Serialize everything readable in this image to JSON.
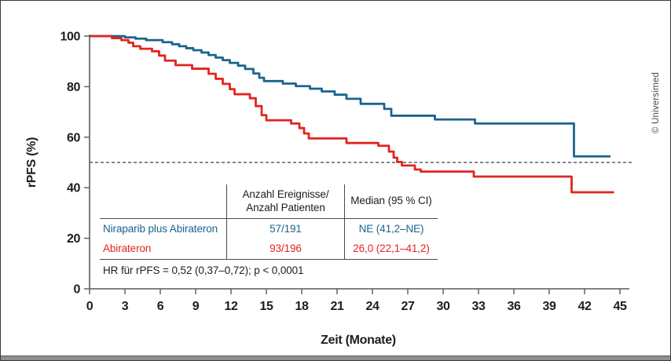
{
  "figure": {
    "x_axis_title": "Zeit (Monate)",
    "y_axis_title": "rPFS (%)",
    "copyright": "© Universimed"
  },
  "colors": {
    "niraparib_blue": "#1b648f",
    "abirateron_red": "#e1251f",
    "axis_gray": "#58595b",
    "reference_dash": "#3d3d3d"
  },
  "stats_table": {
    "events_header_line1": "Anzahl Ereignisse/",
    "events_header_line2": "Anzahl Patienten",
    "median_header": "Median (95 % CI)",
    "rows": [
      {
        "label": "Niraparib plus Abirateron",
        "events": "57/191",
        "median": "NE (41,2–NE)"
      },
      {
        "label": "Abirateron",
        "events": "93/196",
        "median": "26,0 (22,1–41,2)"
      }
    ],
    "hr_note": "HR für rPFS = 0,52 (0,37–0,72); p < 0,0001"
  },
  "chart_data": {
    "type": "line",
    "variant": "kaplan-meier-step",
    "title": "",
    "xlabel": "Zeit (Monate)",
    "ylabel": "rPFS (%)",
    "xlim": [
      0,
      45
    ],
    "ylim": [
      0,
      100
    ],
    "x_ticks": [
      0,
      3,
      6,
      9,
      12,
      15,
      18,
      21,
      24,
      27,
      30,
      33,
      36,
      39,
      42,
      45
    ],
    "y_ticks": [
      0,
      20,
      40,
      60,
      80,
      100
    ],
    "reference_line_y": 50,
    "grid": false,
    "legend_position": "table-inset",
    "series": [
      {
        "name": "Niraparib plus Abirateron",
        "color": "#1b648f",
        "start_value": 100,
        "steps": [
          [
            3.0,
            99.5
          ],
          [
            3.9,
            99.0
          ],
          [
            4.8,
            98.4
          ],
          [
            6.2,
            97.6
          ],
          [
            7.0,
            96.8
          ],
          [
            7.6,
            96.0
          ],
          [
            8.2,
            95.2
          ],
          [
            8.8,
            94.4
          ],
          [
            9.5,
            93.5
          ],
          [
            10.1,
            92.5
          ],
          [
            10.7,
            91.5
          ],
          [
            11.3,
            90.5
          ],
          [
            11.9,
            89.4
          ],
          [
            12.6,
            88.3
          ],
          [
            13.2,
            87.0
          ],
          [
            13.9,
            85.2
          ],
          [
            14.4,
            83.5
          ],
          [
            14.8,
            82.2
          ],
          [
            16.4,
            81.2
          ],
          [
            17.5,
            80.2
          ],
          [
            18.7,
            79.2
          ],
          [
            19.7,
            78.1
          ],
          [
            20.8,
            76.8
          ],
          [
            21.8,
            75.2
          ],
          [
            23.0,
            73.2
          ],
          [
            25.0,
            71.2
          ],
          [
            25.6,
            68.5
          ],
          [
            29.3,
            67.0
          ],
          [
            32.7,
            65.4
          ],
          [
            41.1,
            52.4
          ]
        ],
        "end_time": 44.2,
        "events_over_patients": "57/191",
        "median_95ci": "NE (41,2–NE)"
      },
      {
        "name": "Abirateron",
        "color": "#e1251f",
        "start_value": 100,
        "steps": [
          [
            1.9,
            99.2
          ],
          [
            2.7,
            98.4
          ],
          [
            3.3,
            97.4
          ],
          [
            3.7,
            96.0
          ],
          [
            4.3,
            95.0
          ],
          [
            5.3,
            94.0
          ],
          [
            5.9,
            92.3
          ],
          [
            6.4,
            90.3
          ],
          [
            7.3,
            88.5
          ],
          [
            8.7,
            87.1
          ],
          [
            10.1,
            85.1
          ],
          [
            10.7,
            83.1
          ],
          [
            11.3,
            81.1
          ],
          [
            11.9,
            79.0
          ],
          [
            12.3,
            77.0
          ],
          [
            13.6,
            75.4
          ],
          [
            14.1,
            72.3
          ],
          [
            14.6,
            68.7
          ],
          [
            15.0,
            66.7
          ],
          [
            17.1,
            65.4
          ],
          [
            17.8,
            63.6
          ],
          [
            18.2,
            61.5
          ],
          [
            18.6,
            59.5
          ],
          [
            21.8,
            57.7
          ],
          [
            24.5,
            56.6
          ],
          [
            25.4,
            54.3
          ],
          [
            25.8,
            51.9
          ],
          [
            26.1,
            50.2
          ],
          [
            26.5,
            48.8
          ],
          [
            27.6,
            47.2
          ],
          [
            28.1,
            46.4
          ],
          [
            32.6,
            44.4
          ],
          [
            40.9,
            38.2
          ]
        ],
        "end_time": 44.5,
        "events_over_patients": "93/196",
        "median_95ci": "26,0 (22,1–41,2)"
      }
    ],
    "hr_annotation": "HR für rPFS = 0,52 (0,37–0,72); p < 0,0001"
  }
}
